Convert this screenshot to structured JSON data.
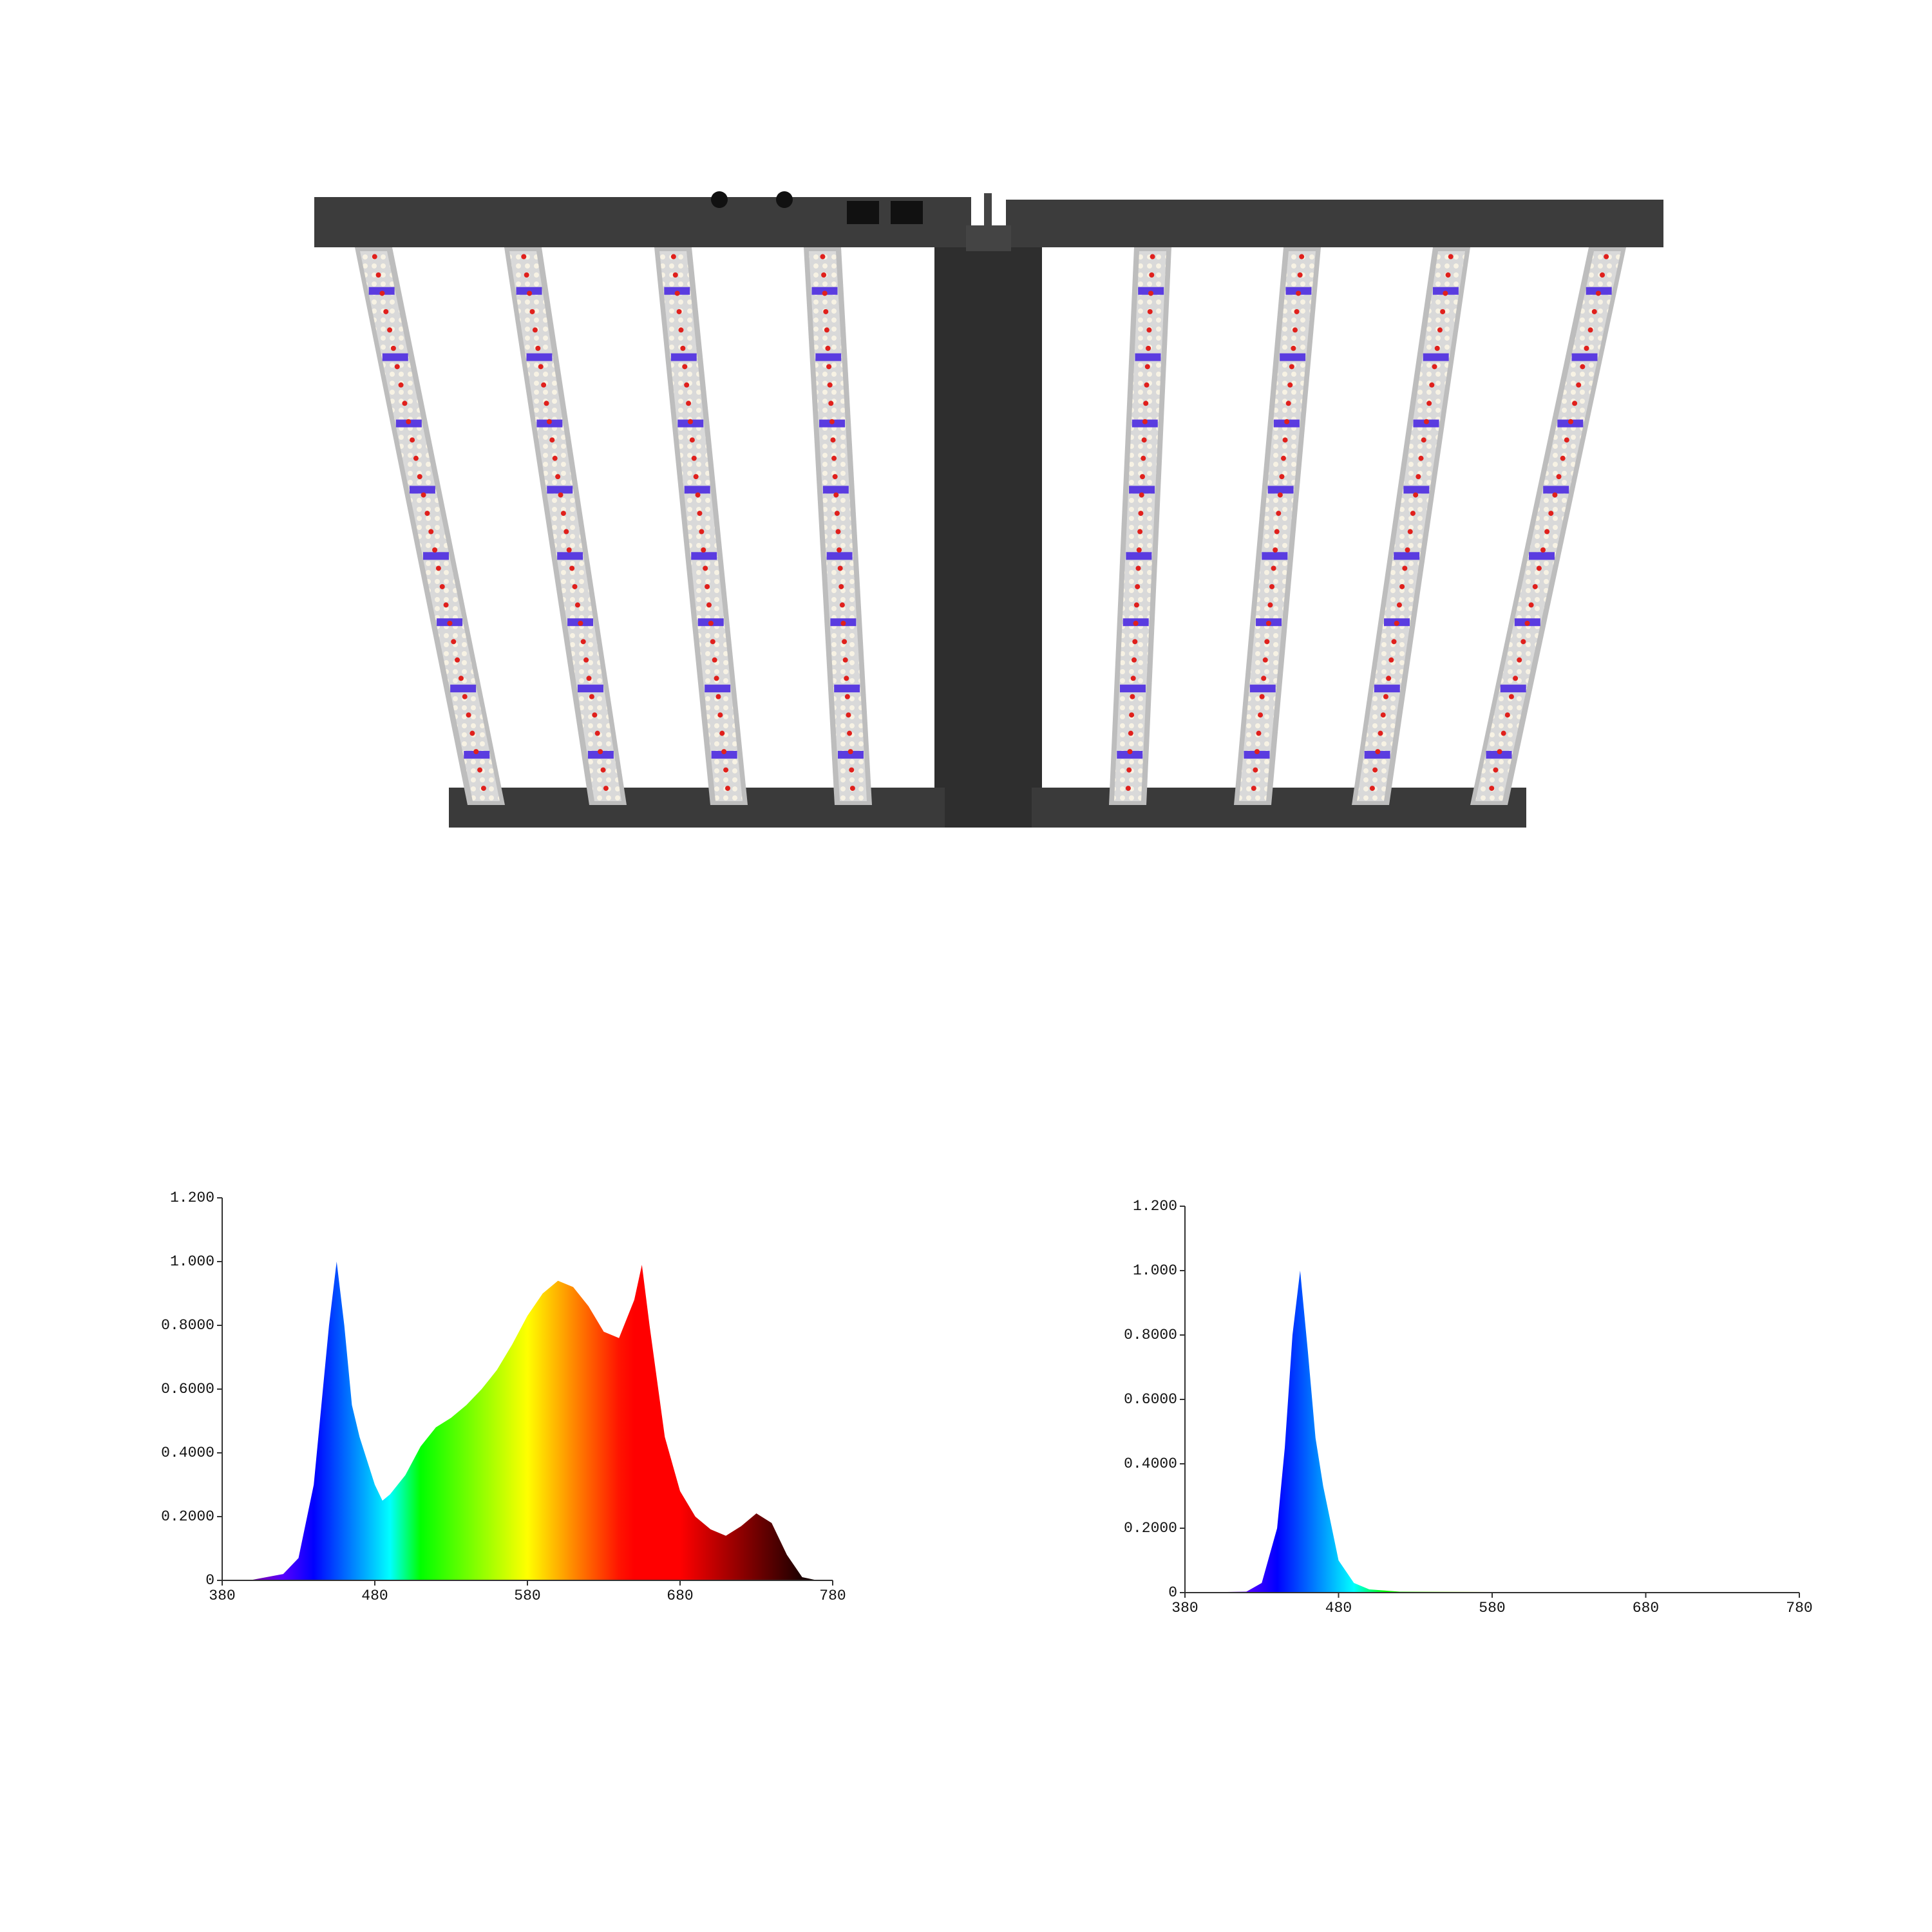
{
  "chart_data": [
    {
      "type": "area",
      "x": [
        380,
        400,
        420,
        430,
        440,
        450,
        455,
        460,
        465,
        470,
        480,
        485,
        490,
        500,
        510,
        520,
        530,
        540,
        550,
        560,
        570,
        580,
        590,
        600,
        610,
        620,
        630,
        640,
        650,
        655,
        660,
        670,
        680,
        690,
        700,
        710,
        720,
        730,
        740,
        750,
        760,
        770
      ],
      "values": [
        0,
        0.002,
        0.02,
        0.07,
        0.3,
        0.8,
        1.0,
        0.8,
        0.55,
        0.45,
        0.3,
        0.25,
        0.27,
        0.33,
        0.42,
        0.48,
        0.51,
        0.55,
        0.6,
        0.66,
        0.74,
        0.83,
        0.9,
        0.94,
        0.92,
        0.86,
        0.78,
        0.76,
        0.88,
        0.99,
        0.8,
        0.45,
        0.28,
        0.2,
        0.16,
        0.14,
        0.17,
        0.21,
        0.18,
        0.08,
        0.01,
        0
      ],
      "xlim": [
        380,
        780
      ],
      "ylim": [
        0,
        1.2
      ],
      "xticks": [
        380,
        480,
        580,
        680,
        780
      ],
      "yticks": [
        0,
        {
          "value": 0.2,
          "label": "0.2000"
        },
        {
          "value": 0.4,
          "label": "0.4000"
        },
        {
          "value": 0.6,
          "label": "0.6000"
        },
        {
          "value": 0.8,
          "label": "0.8000"
        },
        {
          "value": 1.0,
          "label": "1.000"
        },
        {
          "value": 1.2,
          "label": "1.200"
        }
      ]
    },
    {
      "type": "area",
      "x": [
        380,
        420,
        430,
        440,
        445,
        450,
        455,
        460,
        465,
        470,
        480,
        490,
        500,
        520,
        580,
        680,
        780
      ],
      "values": [
        0,
        0.003,
        0.03,
        0.2,
        0.45,
        0.8,
        1.0,
        0.75,
        0.48,
        0.33,
        0.1,
        0.03,
        0.01,
        0.003,
        0.002,
        0.002,
        0
      ],
      "xlim": [
        380,
        780
      ],
      "ylim": [
        0,
        1.2
      ],
      "xticks": [
        380,
        480,
        580,
        680,
        780
      ],
      "yticks": [
        0,
        {
          "value": 0.2,
          "label": "0.2000"
        },
        {
          "value": 0.4,
          "label": "0.4000"
        },
        {
          "value": 0.6,
          "label": "0.6000"
        },
        {
          "value": 0.8,
          "label": "0.8000"
        },
        {
          "value": 1.0,
          "label": "1.000"
        },
        {
          "value": 1.2,
          "label": "1.200"
        }
      ]
    }
  ]
}
